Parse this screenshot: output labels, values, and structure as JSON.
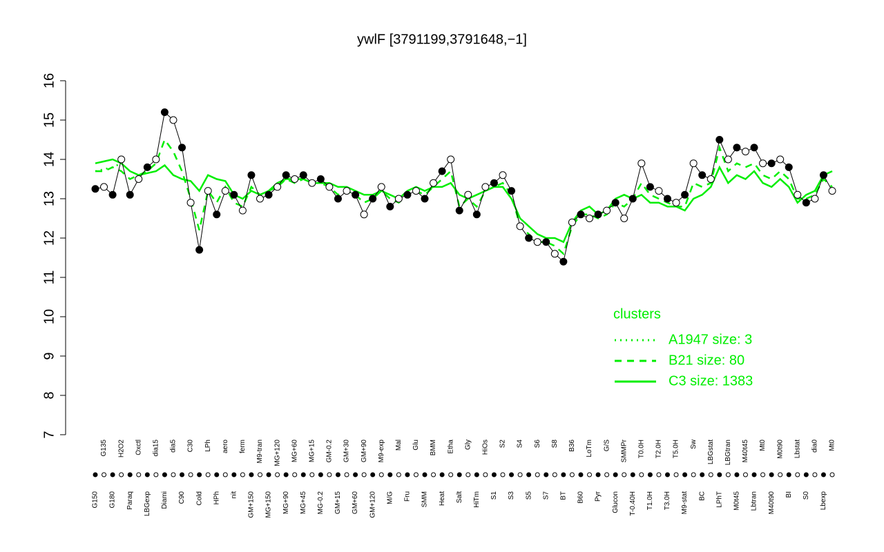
{
  "chart_data": {
    "type": "line",
    "title": "ywlF [3791199,3791648,−1]",
    "categories": [
      "G150",
      "G135",
      "G180",
      "H2O2",
      "Paraq",
      "Oxctl",
      "LBGexp",
      "dia15",
      "Diami",
      "dia5",
      "C90",
      "C30",
      "Cold",
      "LPh",
      "HPh",
      "aero",
      "nit",
      "ferm",
      "GM+150",
      "M9-tran",
      "MG+150",
      "MG+120",
      "MG+90",
      "MG+60",
      "MG+45",
      "MG+15",
      "MG-0.2",
      "GM-0.2",
      "GM+15",
      "GM+30",
      "GM+60",
      "GM+90",
      "GM+120",
      "M9-exp",
      "M/G",
      "Mal",
      "Fru",
      "Glu",
      "SMM",
      "BMM",
      "Heat",
      "Etha",
      "Salt",
      "Gly",
      "HiTm",
      "HiOs",
      "S1",
      "S2",
      "S3",
      "S4",
      "S5",
      "S6",
      "S7",
      "S8",
      "BT",
      "B36",
      "B60",
      "LoTm",
      "Pyr",
      "G/S",
      "Glucon",
      "SMMPr",
      "T-0.40H",
      "T0.0H",
      "T1.0H",
      "T2.0H",
      "T3.0H",
      "T5.0H",
      "M9-stat",
      "Sw",
      "BC",
      "LBGstat",
      "LPhT",
      "LBGtran",
      "M0t45",
      "M40t45",
      "Lbtran",
      "Mt0",
      "M40t90",
      "M0t90",
      "BI",
      "Lbstat",
      "S0",
      "dia0",
      "Lbexp",
      "Mt0"
    ],
    "values": [
      13.25,
      13.3,
      13.1,
      14.0,
      13.1,
      13.5,
      13.8,
      14.0,
      15.2,
      15.0,
      14.3,
      12.9,
      11.7,
      13.2,
      12.6,
      13.2,
      13.1,
      12.7,
      13.6,
      13.0,
      13.1,
      13.3,
      13.6,
      13.5,
      13.6,
      13.4,
      13.5,
      13.3,
      13.0,
      13.2,
      13.1,
      12.6,
      13.0,
      13.3,
      12.8,
      13.0,
      13.1,
      13.2,
      13.0,
      13.4,
      13.7,
      14.0,
      12.7,
      13.1,
      12.6,
      13.3,
      13.4,
      13.6,
      13.2,
      12.3,
      12.0,
      11.9,
      11.9,
      11.6,
      11.4,
      12.4,
      12.6,
      12.5,
      12.6,
      12.7,
      12.9,
      12.5,
      13.0,
      13.9,
      13.3,
      13.2,
      13.0,
      12.9,
      13.1,
      13.9,
      13.6,
      13.5,
      14.5,
      14.0,
      14.3,
      14.2,
      14.3,
      13.9,
      13.9,
      14.0,
      13.8,
      13.1,
      12.9,
      13.0,
      13.6,
      13.2
    ],
    "series": [
      {
        "name": "A1947 size: 3",
        "color": "#00ee00",
        "dash": "dotted",
        "values": [
          13.7,
          13.75,
          13.8,
          13.9,
          null,
          null,
          null,
          null,
          null,
          null,
          null,
          null,
          null,
          null,
          null,
          null,
          null,
          null,
          null,
          null,
          null,
          null,
          null,
          null,
          null,
          null,
          null,
          null,
          null,
          null,
          null,
          null,
          null,
          null,
          null,
          null,
          null,
          null,
          null,
          null,
          null,
          null,
          null,
          null,
          null,
          null,
          null,
          null,
          null,
          null,
          null,
          null,
          null,
          null,
          null,
          null,
          null,
          null,
          null,
          null,
          null,
          null,
          null,
          null,
          null,
          null,
          null,
          null,
          null,
          null,
          null,
          null,
          null,
          null,
          null,
          null,
          null,
          null,
          null,
          null,
          null,
          null,
          null,
          null,
          null,
          null
        ]
      },
      {
        "name": "B21 size: 80",
        "color": "#00ee00",
        "dash": "dashed",
        "values": [
          13.7,
          13.7,
          13.8,
          13.7,
          13.5,
          13.6,
          13.7,
          13.9,
          14.5,
          14.2,
          13.7,
          13.0,
          12.2,
          13.2,
          12.9,
          13.3,
          12.9,
          12.8,
          13.3,
          13.1,
          13.2,
          13.3,
          13.5,
          13.4,
          13.5,
          13.4,
          13.4,
          13.3,
          13.1,
          13.2,
          13.1,
          12.9,
          13.0,
          13.2,
          13.0,
          12.9,
          13.1,
          13.2,
          13.1,
          13.3,
          13.5,
          13.7,
          12.8,
          13.0,
          12.8,
          13.2,
          13.3,
          13.4,
          13.1,
          12.3,
          12.1,
          11.9,
          11.9,
          11.8,
          11.6,
          12.3,
          12.6,
          12.6,
          12.5,
          12.6,
          12.9,
          12.8,
          13.0,
          13.4,
          13.1,
          13.0,
          12.9,
          12.8,
          12.8,
          13.4,
          13.3,
          13.4,
          14.3,
          13.7,
          13.9,
          13.8,
          13.9,
          13.6,
          13.5,
          13.7,
          13.5,
          13.0,
          13.0,
          13.1,
          13.5,
          13.3
        ]
      },
      {
        "name": "C3 size: 1383",
        "color": "#00ee00",
        "dash": "solid",
        "values": [
          13.9,
          13.95,
          14.0,
          13.9,
          13.7,
          13.6,
          13.65,
          13.7,
          13.85,
          13.6,
          13.5,
          13.45,
          13.2,
          13.6,
          13.5,
          13.45,
          13.1,
          13.0,
          13.2,
          13.1,
          13.2,
          13.4,
          13.5,
          13.5,
          13.5,
          13.4,
          13.4,
          13.4,
          13.3,
          13.3,
          13.2,
          13.1,
          13.1,
          13.2,
          13.1,
          13.0,
          13.2,
          13.3,
          13.2,
          13.3,
          13.3,
          13.4,
          13.1,
          13.0,
          13.1,
          13.2,
          13.3,
          13.3,
          13.0,
          12.5,
          12.3,
          12.1,
          12.0,
          12.0,
          11.9,
          12.4,
          12.7,
          12.8,
          12.6,
          12.7,
          13.0,
          13.1,
          13.0,
          13.1,
          12.9,
          12.9,
          12.8,
          12.8,
          12.7,
          13.0,
          13.1,
          13.3,
          13.8,
          13.4,
          13.6,
          13.5,
          13.7,
          13.4,
          13.3,
          13.5,
          13.3,
          12.9,
          13.1,
          13.2,
          13.6,
          13.7
        ]
      }
    ],
    "legend_title": "clusters",
    "ylim": [
      7,
      16
    ],
    "yticks": [
      7,
      8,
      9,
      10,
      11,
      12,
      13,
      14,
      15,
      16
    ]
  }
}
